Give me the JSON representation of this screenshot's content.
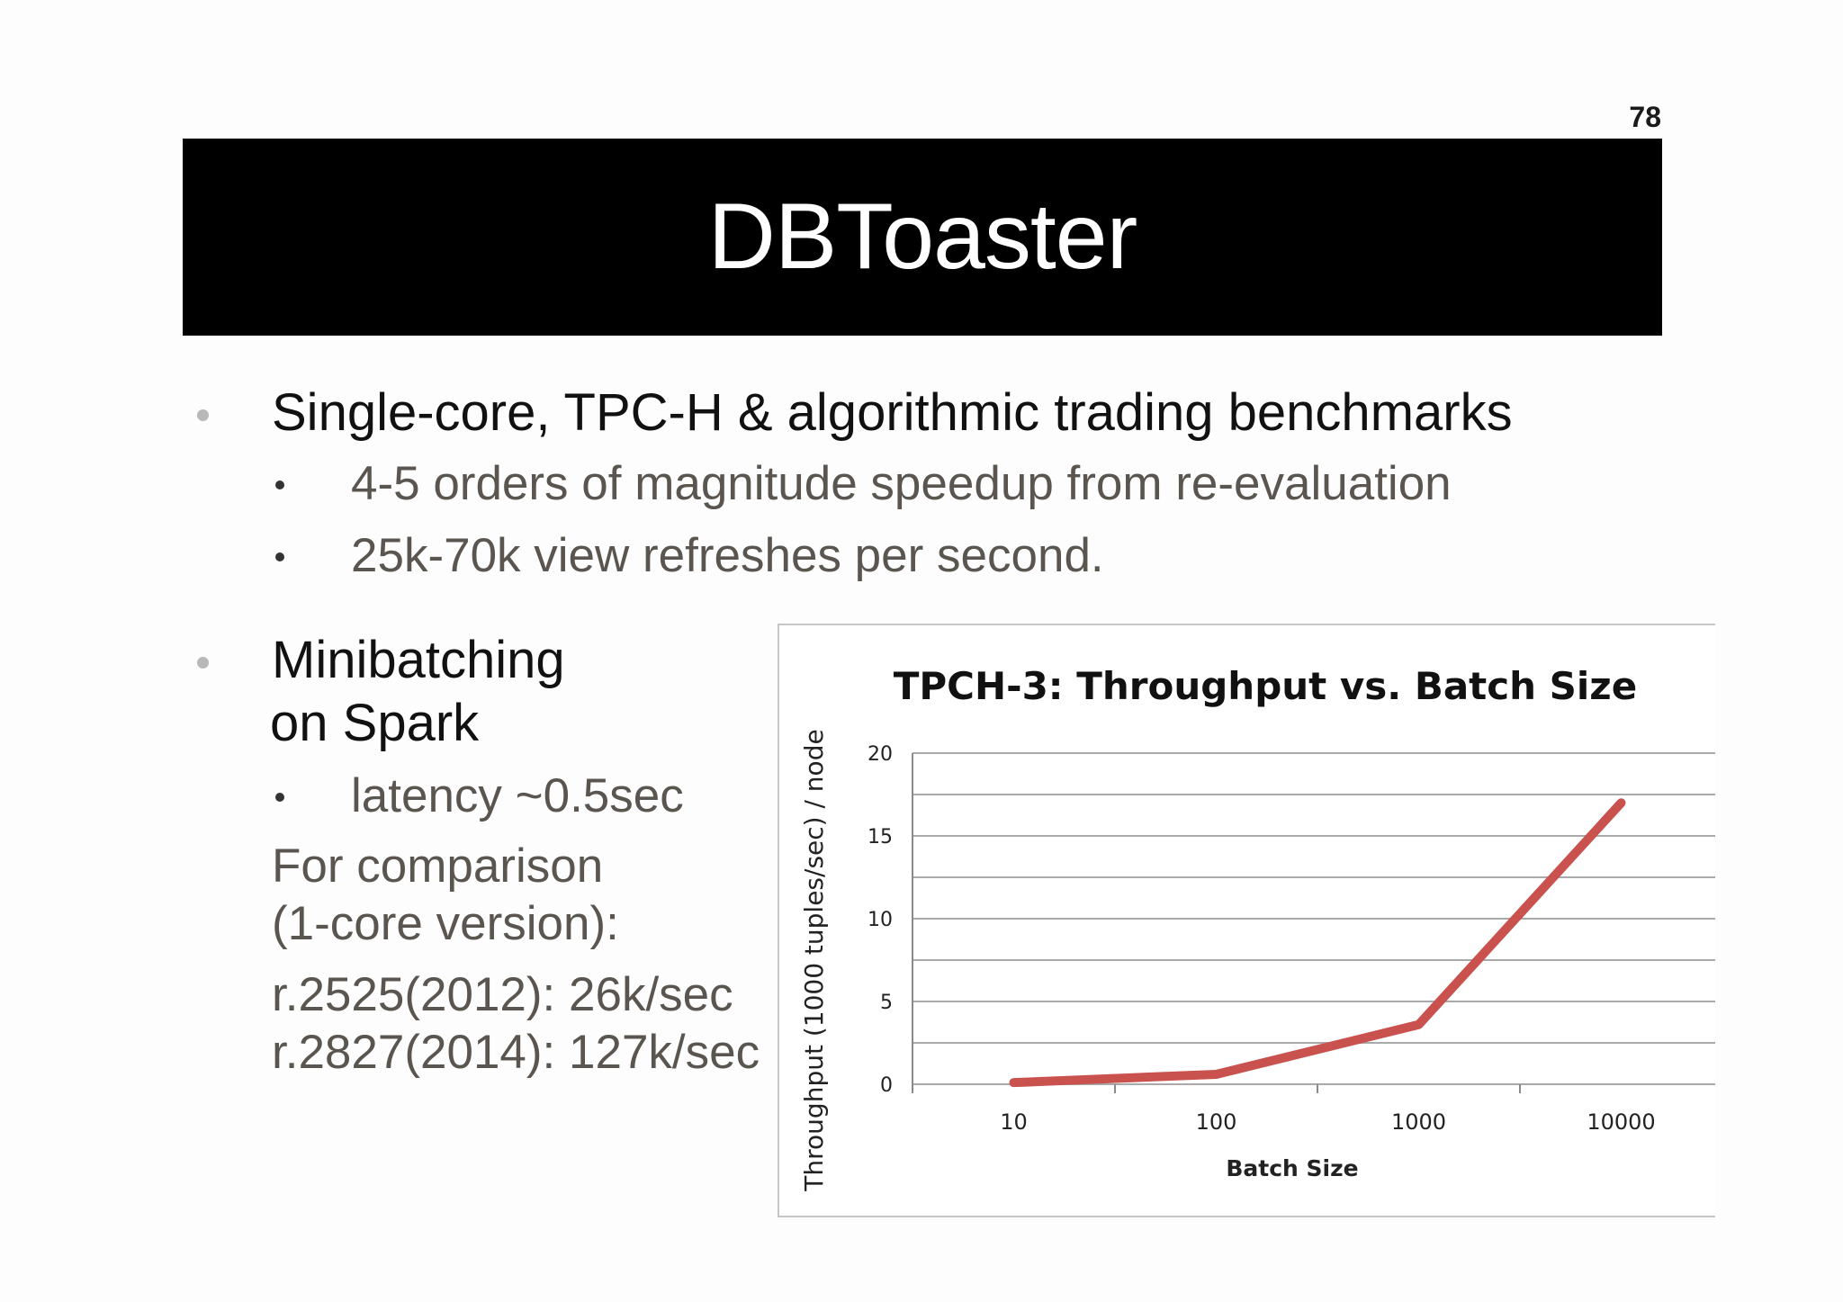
{
  "page_number": "78",
  "title": "DBToaster",
  "bullets": {
    "b1": "Single-core, TPC-H & algorithmic trading benchmarks",
    "b1_sub1": "4-5 orders of magnitude speedup from re-evaluation",
    "b1_sub2": "25k-70k view refreshes per second.",
    "b2_line1": "Minibatching",
    "b2_line2": "on Spark",
    "b2_sub1": "latency ~0.5sec",
    "comparison_line1": "For comparison",
    "comparison_line2": "(1-core version):",
    "comparison_line3": "r.2525(2012): 26k/sec",
    "comparison_line4": "r.2827(2014): 127k/sec"
  },
  "chart_data": {
    "type": "line",
    "title": "TPCH-3: Throughput vs. Batch Size",
    "xlabel": "Batch Size",
    "ylabel": "Throughput (1000 tuples/sec) / node",
    "categories": [
      "10",
      "100",
      "1000",
      "10000"
    ],
    "series": [
      {
        "values": [
          0.1,
          0.6,
          3.6,
          17.0
        ],
        "color": "#c9524f"
      }
    ],
    "yticks": [
      "0",
      "5",
      "10",
      "15",
      "20"
    ],
    "ylim": [
      0,
      20
    ],
    "grid_step": 2.5,
    "grid": true,
    "legend": "none"
  }
}
